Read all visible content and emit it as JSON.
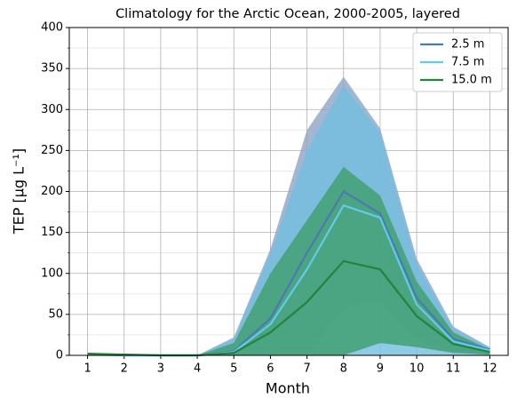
{
  "chart_data": {
    "type": "line",
    "title": "Climatology for the Arctic Ocean, 2000-2005, layered",
    "xlabel": "Month",
    "ylabel": "TEP [μg L⁻¹]",
    "x": [
      1,
      2,
      3,
      4,
      5,
      6,
      7,
      8,
      9,
      10,
      11,
      12
    ],
    "xlim": [
      0.5,
      12.5
    ],
    "xticks": [
      1,
      2,
      3,
      4,
      5,
      6,
      7,
      8,
      9,
      10,
      11,
      12
    ],
    "ylim": [
      0,
      400
    ],
    "yticks": [
      0,
      50,
      100,
      150,
      200,
      250,
      300,
      350,
      400
    ],
    "yminorticks": [
      25,
      75,
      125,
      175,
      225,
      275,
      325,
      375
    ],
    "grid": true,
    "legend": "upper right",
    "series": [
      {
        "name": "2.5 m",
        "color": "#4a7ab0",
        "band_color": "#8ea4c6",
        "values": [
          2,
          0,
          0,
          0,
          5,
          45,
          125,
          200,
          173,
          70,
          20,
          7
        ],
        "upper": [
          3,
          1,
          0,
          0,
          22,
          130,
          275,
          340,
          277,
          118,
          35,
          10
        ],
        "lower": [
          0,
          0,
          0,
          0,
          0,
          0,
          0,
          58,
          68,
          20,
          5,
          1
        ]
      },
      {
        "name": "7.5 m",
        "color": "#62cbe8",
        "band_color": "#72bfe0",
        "values": [
          1,
          0,
          0,
          0,
          4,
          38,
          105,
          183,
          168,
          62,
          17,
          6
        ],
        "upper": [
          2,
          0,
          0,
          0,
          20,
          125,
          250,
          330,
          272,
          112,
          32,
          9
        ],
        "lower": [
          0,
          0,
          0,
          0,
          0,
          0,
          0,
          0,
          0,
          0,
          0,
          0
        ]
      },
      {
        "name": "15.0 m",
        "color": "#22853a",
        "band_color": "#3f9d6c",
        "values": [
          2,
          1,
          0,
          0,
          3,
          28,
          65,
          115,
          105,
          48,
          14,
          4
        ],
        "upper": [
          3,
          1,
          0,
          0,
          15,
          100,
          165,
          230,
          195,
          90,
          28,
          7
        ],
        "lower": [
          0,
          0,
          0,
          0,
          0,
          0,
          0,
          0,
          15,
          10,
          3,
          1
        ]
      }
    ]
  }
}
